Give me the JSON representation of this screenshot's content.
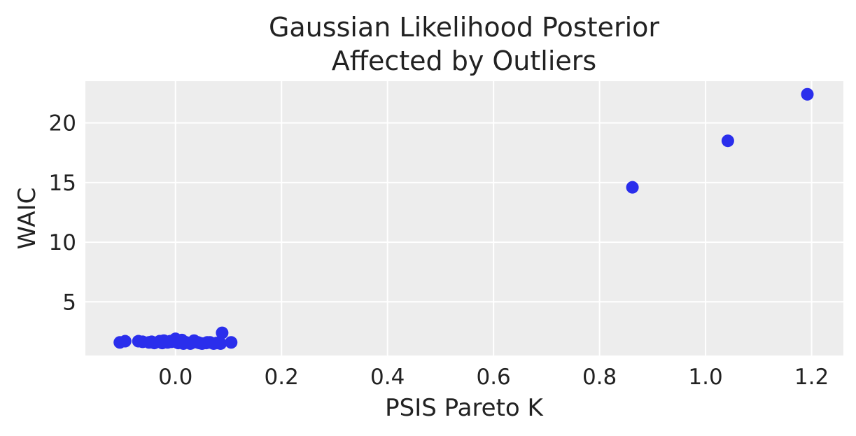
{
  "chart_data": {
    "type": "scatter",
    "title_line1": "Gaussian Likelihood Posterior",
    "title_line2": "Affected by Outliers",
    "xlabel": "PSIS Pareto K",
    "ylabel": "WAIC",
    "xlim": [
      -0.17,
      1.26
    ],
    "ylim": [
      0.5,
      23.5
    ],
    "xticks": [
      0.0,
      0.2,
      0.4,
      0.6,
      0.8,
      1.0,
      1.2
    ],
    "xtick_labels": [
      "0.0",
      "0.2",
      "0.4",
      "0.6",
      "0.8",
      "1.0",
      "1.2"
    ],
    "yticks": [
      5,
      10,
      15,
      20
    ],
    "ytick_labels": [
      "5",
      "10",
      "15",
      "20"
    ],
    "grid": true,
    "background": "#ededed",
    "grid_color": "#ffffff",
    "marker_color": "#2a2eec",
    "series": [
      {
        "x": [
          -0.105,
          -0.095,
          -0.07,
          -0.062,
          -0.05,
          -0.04,
          -0.03,
          -0.022,
          -0.015,
          -0.008,
          0.0,
          0.005,
          0.012,
          0.02,
          0.028,
          0.035,
          0.042,
          0.05,
          0.058,
          0.065,
          0.072,
          0.078,
          0.085,
          0.088,
          0.105,
          -0.045,
          -0.025,
          0.015,
          0.03,
          0.06,
          -0.01,
          0.045
        ],
        "y": [
          1.6,
          1.7,
          1.7,
          1.65,
          1.6,
          1.55,
          1.7,
          1.75,
          1.6,
          1.65,
          1.9,
          1.55,
          1.8,
          1.6,
          1.5,
          1.75,
          1.6,
          1.5,
          1.55,
          1.6,
          1.5,
          1.55,
          1.5,
          2.4,
          1.6,
          1.65,
          1.55,
          1.5,
          1.55,
          1.6,
          1.7,
          1.55
        ]
      },
      {
        "x": [
          0.862,
          1.042,
          1.192
        ],
        "y": [
          14.6,
          18.5,
          22.4
        ]
      }
    ]
  }
}
